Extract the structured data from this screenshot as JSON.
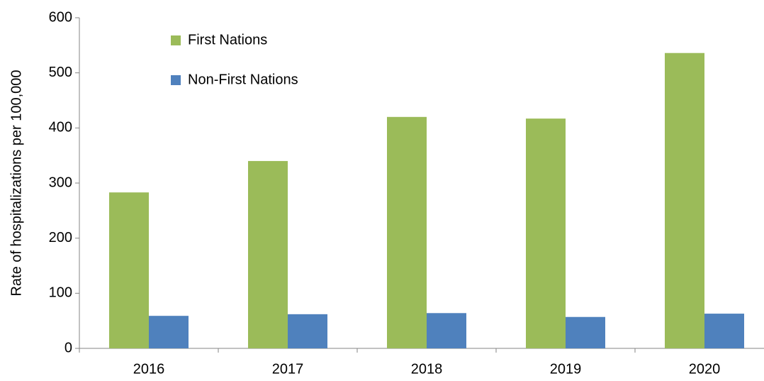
{
  "chart_data": {
    "type": "bar",
    "y_label": "Rate of hospitalizations per 100,000",
    "categories": [
      "2016",
      "2017",
      "2018",
      "2019",
      "2020"
    ],
    "series": [
      {
        "name": "First Nations",
        "color": "#9bbb59",
        "values": [
          283,
          340,
          420,
          417,
          536
        ]
      },
      {
        "name": "Non-First Nations",
        "color": "#4f81bd",
        "values": [
          59,
          62,
          64,
          57,
          63
        ]
      }
    ],
    "ylim": [
      0,
      600
    ],
    "yticks": [
      0,
      100,
      200,
      300,
      400,
      500,
      600
    ],
    "legend": "upper-left",
    "grid": false
  }
}
